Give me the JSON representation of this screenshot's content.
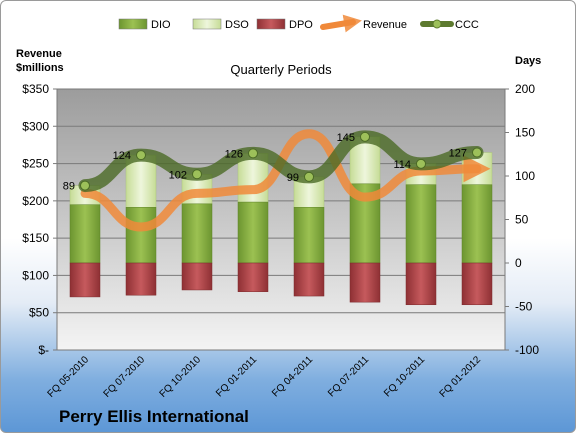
{
  "chart_data": {
    "type": "bar",
    "title": "Quarterly Periods",
    "company": "Perry Ellis International",
    "left_axis_label_line1": "Revenue",
    "left_axis_label_line2": "$millions",
    "right_axis_label": "Days",
    "left_axis": {
      "ylim": [
        0,
        350
      ],
      "ticks": [
        "$-",
        "$50",
        "$100",
        "$150",
        "$200",
        "$250",
        "$300",
        "$350"
      ]
    },
    "right_axis": {
      "ylim": [
        -100,
        200
      ],
      "ticks": [
        "-100",
        "-50",
        "0",
        "50",
        "100",
        "150",
        "200"
      ]
    },
    "categories": [
      "FQ 05-2010",
      "FQ 07-2010",
      "FQ 10-2010",
      "FQ 01-2011",
      "FQ 04-2011",
      "FQ 07-2011",
      "FQ 10-2011",
      "FQ 01-2012"
    ],
    "legend": [
      {
        "name": "DIO",
        "swatch": "bar",
        "color": "#7fa53a"
      },
      {
        "name": "DSO",
        "swatch": "bar",
        "color": "#d6e7b0"
      },
      {
        "name": "DPO",
        "swatch": "bar",
        "color": "#b04a4d"
      },
      {
        "name": "Revenue",
        "swatch": "arrow",
        "color": "#f0893a"
      },
      {
        "name": "CCC",
        "swatch": "line-dot",
        "color": "#5d7a2f"
      }
    ],
    "series": [
      {
        "name": "DIO",
        "values": [
          67,
          64,
          68,
          70,
          64,
          91,
          90,
          90
        ]
      },
      {
        "name": "DSO",
        "values": [
          22,
          60,
          34,
          56,
          35,
          54,
          24,
          37
        ]
      },
      {
        "name": "DPO",
        "values": [
          -39,
          -37,
          -31,
          -33,
          -38,
          -45,
          -48,
          -48
        ]
      },
      {
        "name": "Revenue",
        "values": [
          210,
          165,
          210,
          215,
          290,
          205,
          240,
          243
        ]
      },
      {
        "name": "CCC",
        "values": [
          89,
          124,
          102,
          126,
          99,
          145,
          114,
          127
        ]
      }
    ],
    "ccc_labels": [
      "89",
      "124",
      "102",
      "126",
      "99",
      "145",
      "114",
      "127"
    ]
  }
}
